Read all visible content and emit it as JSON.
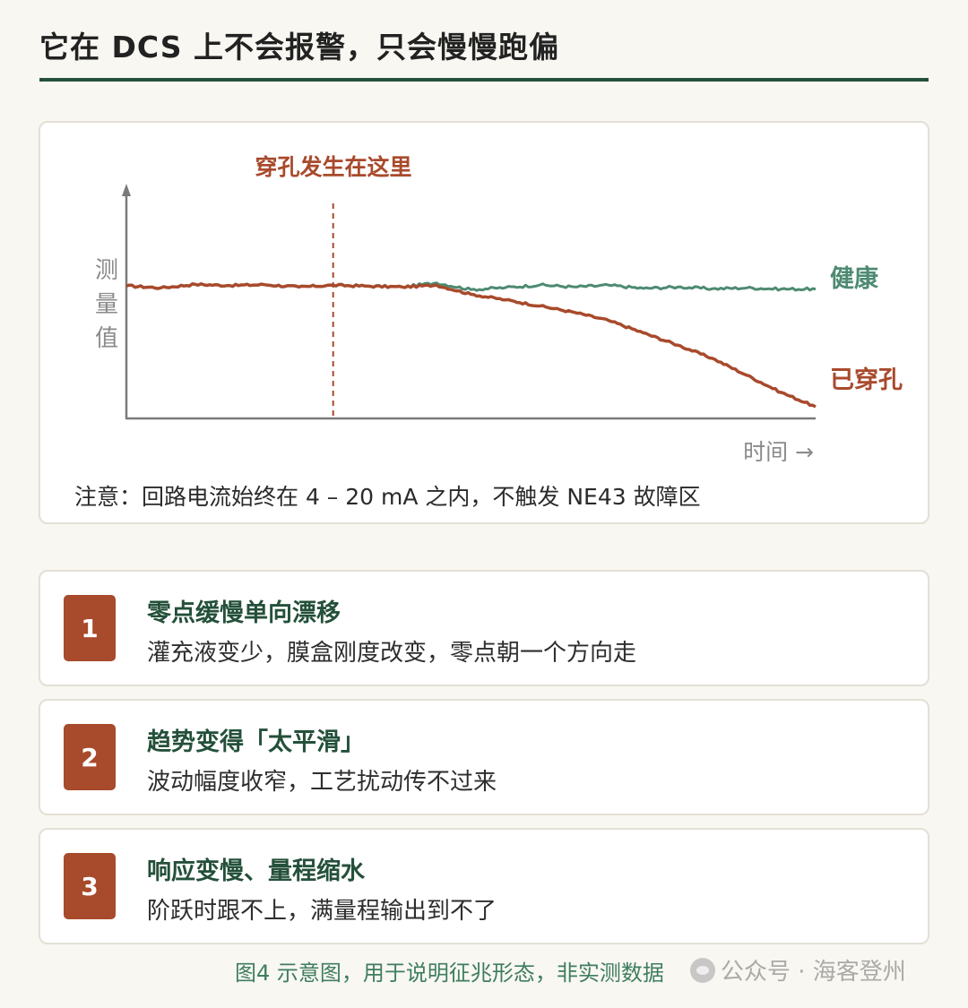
{
  "page": {
    "title": "它在 DCS 上不会报警，只会慢慢跑偏"
  },
  "chart": {
    "annotation": "穿孔发生在这里",
    "ylabel_chars": [
      "测",
      "量",
      "值"
    ],
    "xlabel": "时间 →",
    "series_labels": {
      "healthy": "健康",
      "perforated": "已穿孔"
    },
    "note": "注意：回路电流始终在 4 – 20 mA 之内，不触发 NE43 故障区"
  },
  "chart_data": {
    "type": "line",
    "title": "",
    "xlabel": "时间 →",
    "ylabel": "测量值",
    "x": [
      0,
      5,
      10,
      15,
      20,
      25,
      30,
      35,
      40,
      45,
      50,
      55,
      60,
      65,
      70,
      75,
      80,
      85,
      90,
      95,
      100
    ],
    "event_marker": {
      "x": 30,
      "label": "穿孔发生在这里"
    },
    "series": [
      {
        "name": "健康",
        "values": [
          100.0,
          99.3,
          100.5,
          100.1,
          100.4,
          99.6,
          100.2,
          99.9,
          99.6,
          101.0,
          98.7,
          99.4,
          100.3,
          99.6,
          100.2,
          99.1,
          99.6,
          99.0,
          99.3,
          98.9,
          98.9
        ]
      },
      {
        "name": "已穿孔",
        "values": [
          100.0,
          99.3,
          100.5,
          100.1,
          100.4,
          99.6,
          100.2,
          99.9,
          99.6,
          100.2,
          97.1,
          95.2,
          93.1,
          90.9,
          88.1,
          83.9,
          79.7,
          75.2,
          69.4,
          63.5,
          58.6
        ]
      }
    ]
  },
  "features": [
    {
      "number": "1",
      "title": "零点缓慢单向漂移",
      "desc": "灌充液变少，膜盒刚度改变，零点朝一个方向走"
    },
    {
      "number": "2",
      "title": "趋势变得「太平滑」",
      "desc": "波动幅度收窄，工艺扰动传不过来"
    },
    {
      "number": "3",
      "title": "响应变慢、量程缩水",
      "desc": "阶跃时跟不上，满量程输出到不了"
    }
  ],
  "caption": "图4  示意图，用于说明征兆形态，非实测数据",
  "watermark": "公众号 · 海客登州",
  "colors": {
    "healthy": "#4e8a72",
    "perforated": "#a84a2c",
    "accent_green": "#24503a",
    "axis": "#7a7a7a"
  }
}
